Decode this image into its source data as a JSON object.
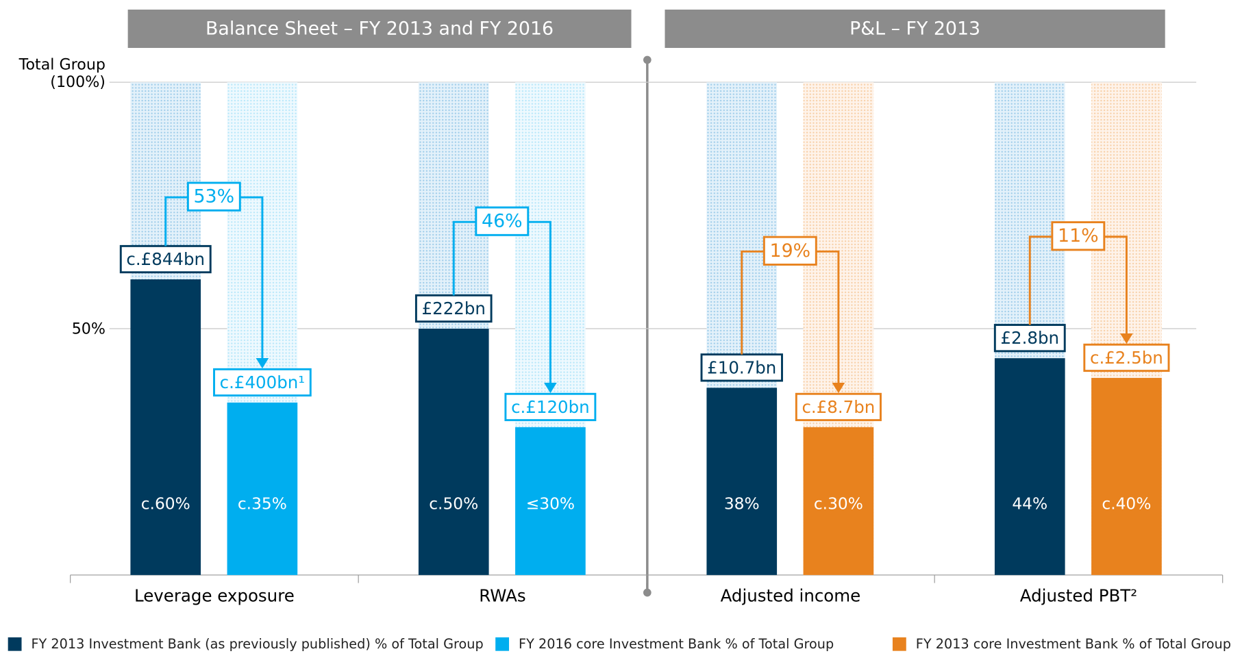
{
  "chart_data": {
    "type": "bar",
    "sections": [
      "Balance Sheet – FY 2013 and FY 2016",
      "P&L – FY 2013"
    ],
    "categories": [
      "Leverage exposure",
      "RWAs",
      "Adjusted income",
      "Adjusted PBT²"
    ],
    "series": [
      {
        "name": "FY 2013 Investment Bank (as previously published) % of Total Group",
        "color": "#003a5d",
        "values": [
          60,
          50,
          38,
          44
        ],
        "value_labels": [
          "c.60%",
          "c.50%",
          "38%",
          "44%"
        ],
        "amount_labels": [
          "c.£844bn",
          "£222bn",
          "£10.7bn",
          "£2.8bn"
        ]
      },
      {
        "name": "FY 2016 core Investment Bank % of Total Group",
        "color": "#00aeef",
        "values": [
          35,
          30,
          null,
          null
        ],
        "value_labels": [
          "c.35%",
          "≤30%",
          null,
          null
        ],
        "amount_labels": [
          "c.£400bn¹",
          "c.£120bn",
          null,
          null
        ]
      },
      {
        "name": "FY 2013 core Investment Bank % of Total Group",
        "color": "#e8821e",
        "values": [
          null,
          null,
          30,
          40
        ],
        "value_labels": [
          null,
          null,
          "c.30%",
          "c.40%"
        ],
        "amount_labels": [
          null,
          null,
          "c.£8.7bn",
          "c.£2.5bn"
        ]
      }
    ],
    "changes": [
      "53%",
      "46%",
      "19%",
      "11%"
    ],
    "ylim": [
      0,
      100
    ],
    "yticks": [
      {
        "value": 50,
        "label": "50%"
      },
      {
        "value": 100,
        "label": "Total Group (100%)"
      }
    ],
    "grid": true
  }
}
